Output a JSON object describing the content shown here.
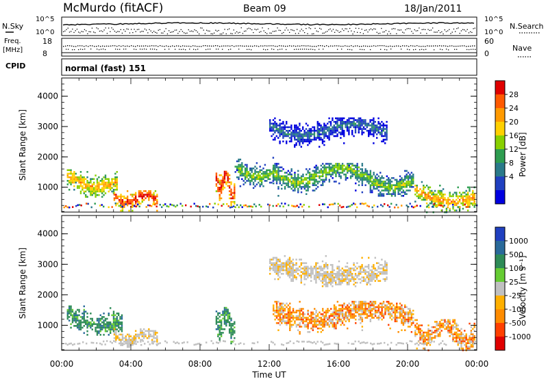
{
  "header": {
    "station": "McMurdo (fitACF)",
    "beam": "Beam 09",
    "date": "18/Jan/2011"
  },
  "strips": {
    "nsky_label": "N.Sky",
    "nsky_top": "10^5",
    "nsky_bottom": "10^0",
    "nsearch_label": "N.Search",
    "nsearch_top": "10^5",
    "nsearch_bottom": "10^0",
    "freq_label_1": "Freq.",
    "freq_label_2": "[MHz]",
    "freq_top": "18",
    "freq_bottom": "8",
    "nave_label": "Nave",
    "nave_top": "60",
    "nave_bottom": "0",
    "cpid_label": "CPID",
    "cpid_value": "normal (fast) 151"
  },
  "colorbars": {
    "power": {
      "label": "Power [dB]",
      "ticks": [
        "28",
        "24",
        "20",
        "16",
        "12",
        "8",
        "4"
      ],
      "colors": [
        "#e00000",
        "#ff5a00",
        "#ff9a00",
        "#ffd000",
        "#88d000",
        "#2e9d50",
        "#2a7a8a",
        "#2040c0",
        "#0000e0"
      ]
    },
    "velocity": {
      "label": "Velocity [m s⁻¹]",
      "ticks": [
        "1000",
        "500",
        "100",
        "25",
        "-25",
        "-100",
        "-500",
        "-1000"
      ],
      "colors": [
        "#2040c0",
        "#2a6a9a",
        "#2e8b57",
        "#66cc33",
        "#c0c0c0",
        "#ffb000",
        "#ff8c00",
        "#ff4000",
        "#e00000"
      ]
    }
  },
  "chart_data": [
    {
      "type": "heatmap",
      "name": "Power",
      "ylabel": "Slant Range [km]",
      "x_ticks": [
        "00:00",
        "04:00",
        "08:00",
        "12:00",
        "16:00",
        "20:00",
        "00:00"
      ],
      "y_ticks": [
        1000,
        2000,
        3000,
        4000
      ],
      "xlim_hours": [
        0,
        24
      ],
      "ylim_km": [
        180,
        4600
      ],
      "regions": [
        {
          "t0": 0.3,
          "t1": 3.2,
          "r0": 700,
          "r1": 1650,
          "level": "mixed-high"
        },
        {
          "t0": 3.0,
          "t1": 5.5,
          "r0": 220,
          "r1": 900,
          "level": "high"
        },
        {
          "t0": 8.9,
          "t1": 10.0,
          "r0": 400,
          "r1": 1600,
          "level": "high"
        },
        {
          "t0": 10.0,
          "t1": 12.2,
          "r0": 1000,
          "r1": 2000,
          "level": "mid"
        },
        {
          "t0": 12.0,
          "t1": 18.8,
          "r0": 2300,
          "r1": 3300,
          "level": "low"
        },
        {
          "t0": 12.2,
          "t1": 20.3,
          "r0": 700,
          "r1": 1800,
          "level": "mid"
        },
        {
          "t0": 20.4,
          "t1": 23.9,
          "r0": 200,
          "r1": 1200,
          "level": "mid-high"
        }
      ]
    },
    {
      "type": "heatmap",
      "name": "Velocity",
      "ylabel": "Slant Range [km]",
      "xlabel": "Time UT",
      "x_ticks": [
        "00:00",
        "04:00",
        "08:00",
        "12:00",
        "16:00",
        "20:00",
        "00:00"
      ],
      "y_ticks": [
        1000,
        2000,
        3000,
        4000
      ],
      "xlim_hours": [
        0,
        24
      ],
      "ylim_km": [
        180,
        4600
      ],
      "regions": [
        {
          "t0": 0.3,
          "t1": 3.5,
          "r0": 700,
          "r1": 1650,
          "velocity": "100 to 500"
        },
        {
          "t0": 3.0,
          "t1": 5.5,
          "r0": 220,
          "r1": 900,
          "velocity": "-25 to 25"
        },
        {
          "t0": 8.9,
          "t1": 10.0,
          "r0": 400,
          "r1": 1600,
          "velocity": "100 to 500"
        },
        {
          "t0": 12.0,
          "t1": 18.8,
          "r0": 2300,
          "r1": 3300,
          "velocity": "-25 to 25"
        },
        {
          "t0": 12.2,
          "t1": 20.3,
          "r0": 700,
          "r1": 1800,
          "velocity": "-100 to -500"
        },
        {
          "t0": 20.4,
          "t1": 23.9,
          "r0": 200,
          "r1": 1200,
          "velocity": "-100 to -500"
        }
      ]
    }
  ]
}
